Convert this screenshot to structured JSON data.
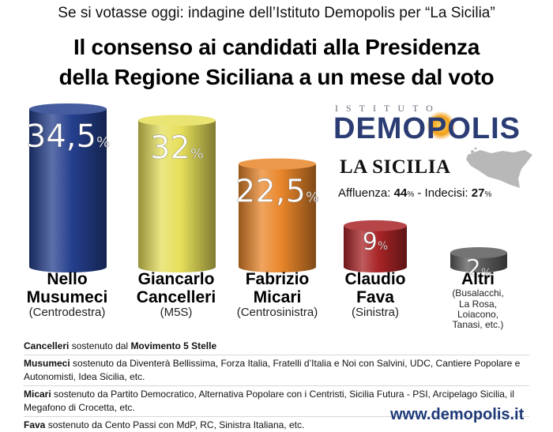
{
  "header": {
    "supertitle": "Se si votasse oggi: indagine dell’Istituto Demopolis per “La Sicilia”",
    "title_line1": "Il consenso ai candidati alla Presidenza",
    "title_line2": "della Regione Siciliana a un mese dal voto"
  },
  "brand": {
    "institute": "ISTITUTO",
    "name": "DEMOPOLIS",
    "newspaper": "LA SICILIA"
  },
  "turnout": {
    "affluenza_label": "Affluenza:",
    "affluenza_value": "44",
    "indecisi_label": "- Indecisi:",
    "indecisi_value": "27",
    "unit": "%"
  },
  "chart_data": {
    "type": "bar",
    "categories": [
      "Nello Musumeci",
      "Giancarlo Cancelleri",
      "Fabrizio Micari",
      "Claudio Fava",
      "Altri"
    ],
    "values": [
      34.5,
      32,
      22.5,
      9,
      2
    ],
    "value_labels": [
      "34,5",
      "32",
      "22,5",
      "9",
      "2"
    ],
    "unit": "%",
    "colors": [
      "#243f8e",
      "#e6df5a",
      "#e9862a",
      "#a92426",
      "#5c5c5c"
    ],
    "candidates": [
      {
        "name_l1": "Nello",
        "name_l2": "Musumeci",
        "coalition": "(Centrodestra)"
      },
      {
        "name_l1": "Giancarlo",
        "name_l2": "Cancelleri",
        "coalition": "(M5S)"
      },
      {
        "name_l1": "Fabrizio",
        "name_l2": "Micari",
        "coalition": "(Centrosinistra)"
      },
      {
        "name_l1": "Claudio",
        "name_l2": "Fava",
        "coalition": "(Sinistra)"
      },
      {
        "name_l1": "Altri",
        "name_l2": "",
        "coalition_lines": [
          "(Busalacchi,",
          "La Rosa,",
          "Loiacono,",
          "Tanasi, etc.)"
        ]
      }
    ]
  },
  "notes": [
    {
      "name": "Cancelleri",
      "text": " sostenuto dal ",
      "bold": "Movimento 5 Stelle"
    },
    {
      "name": "Musumeci",
      "text": " sostenuto da ",
      "bold": "Diventerà Bellissima, Forza Italia, Fratelli d’Italia e Noi con Salvini, UDC, Cantiere Popolare e Autonomisti, Idea Sicilia, etc."
    },
    {
      "name": "Micari",
      "text": " sostenuto da ",
      "bold": "Partito Democratico, Alternativa Popolare con i Centristi, Sicilia Futura - PSI, Arcipelago Sicilia, il Megafono di Crocetta, etc."
    },
    {
      "name": "Fava",
      "text": " sostenuto da ",
      "bold": "Cento Passi con MdP, RC, Sinistra Italiana, etc."
    }
  ],
  "footer": {
    "site": "www.demopolis.it"
  }
}
